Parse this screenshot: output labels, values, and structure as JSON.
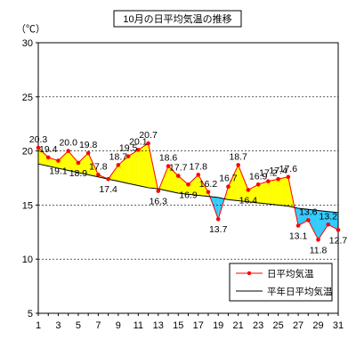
{
  "chart_data": {
    "type": "line",
    "title": "10月の日平均気温の推移",
    "ylabel": "（℃）",
    "xlabel": "",
    "ylim": [
      5,
      30
    ],
    "yticks": [
      5,
      10,
      15,
      20,
      25,
      30
    ],
    "xlim": [
      1,
      31
    ],
    "xticks": [
      1,
      3,
      5,
      7,
      9,
      11,
      13,
      15,
      17,
      19,
      21,
      23,
      25,
      27,
      29,
      31
    ],
    "grid": "horizontal",
    "legend": "bottom-right",
    "x": [
      1,
      2,
      3,
      4,
      5,
      6,
      7,
      8,
      9,
      10,
      11,
      12,
      13,
      14,
      15,
      16,
      17,
      18,
      19,
      20,
      21,
      22,
      23,
      24,
      25,
      26,
      27,
      28,
      29,
      30,
      31
    ],
    "series": [
      {
        "name": "日平均気温",
        "color": "#ff0000",
        "values": [
          20.3,
          19.4,
          19.1,
          20.0,
          18.9,
          19.8,
          17.8,
          17.4,
          18.7,
          19.5,
          20.1,
          20.7,
          16.3,
          18.6,
          17.7,
          16.9,
          17.8,
          16.2,
          13.7,
          16.7,
          18.7,
          16.4,
          16.9,
          17.2,
          17.4,
          17.6,
          13.1,
          13.6,
          11.8,
          13.2,
          12.7
        ]
      },
      {
        "name": "平年日平均気温",
        "color": "#000000",
        "values": [
          18.8,
          18.6,
          18.4,
          18.2,
          18.0,
          17.8,
          17.6,
          17.4,
          17.2,
          17.0,
          16.8,
          16.6,
          16.5,
          16.3,
          16.1,
          16.0,
          15.9,
          15.8,
          15.7,
          15.5,
          15.4,
          15.3,
          15.2,
          15.1,
          15.0,
          14.9,
          14.7,
          14.6,
          14.5,
          14.4,
          14.3
        ]
      }
    ],
    "data_labels": [
      "20.3",
      "19.4",
      "19.1",
      "20.0",
      "18.9",
      "19.8",
      "17.8",
      "17.4",
      "18.7",
      "19.5",
      "20.1",
      "20.7",
      "16.3",
      "18.6",
      "17.7",
      "16.9",
      "17.8",
      "16.2",
      "13.7",
      "16.7",
      "18.7",
      "16.4",
      "16.9",
      "17.2",
      "17.4",
      "17.6",
      "13.1",
      "13.6",
      "11.8",
      "13.2",
      "12.7"
    ],
    "fill_above_color": "#ffff00",
    "fill_below_color": "#33ccff"
  }
}
